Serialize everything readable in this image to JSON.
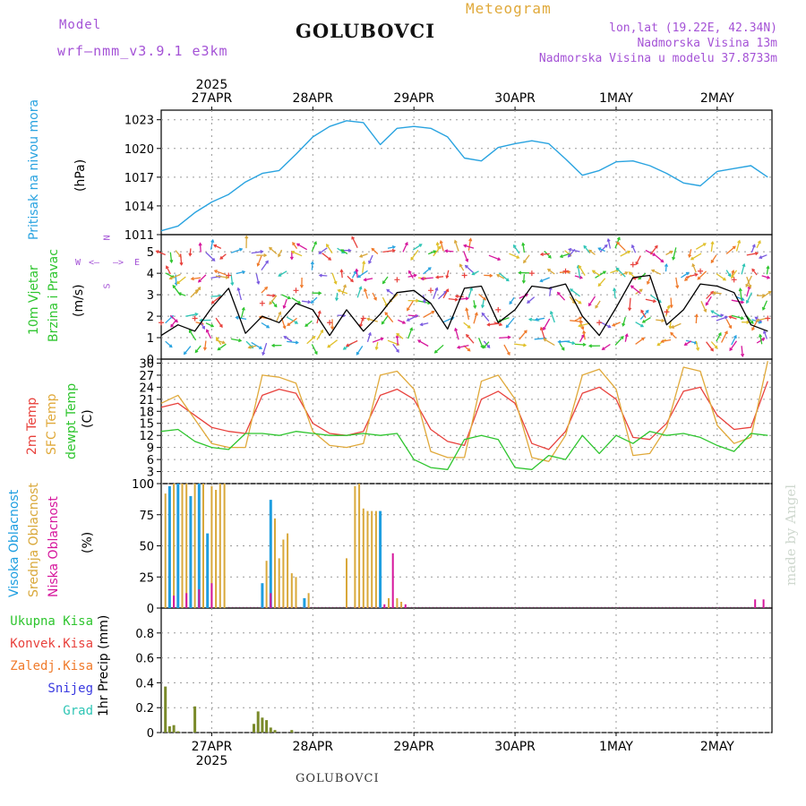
{
  "header": {
    "model_label": "Model",
    "model_name": "wrf–nmm_v3.9.1  e3km",
    "station": "GOLUBOVCI",
    "meteogram": "Meteogram",
    "lonlat": "lon,lat (19.22E, 42.34N)",
    "elevation": "Nadmorska Visina 13m",
    "model_elevation": "Nadmorska Visina u modelu 37.8733m",
    "footer_station": "GOLUBOVCI",
    "watermark": "made by Angel"
  },
  "colors": {
    "pressure": "#29a3e0",
    "wind_mean": "#000000",
    "temp": "#e8413c",
    "sfc_temp": "#e0a93a",
    "dewpoint": "#2ec52e",
    "high_cloud": "#1e9ee0",
    "mid_cloud": "#d9a83a",
    "low_cloud": "#d6169c",
    "total_precip": "#7a8a2a",
    "legend_conv": "#e8413c",
    "legend_frozen": "#f07a2a",
    "legend_snow": "#3a3ae0",
    "legend_hail": "#2ec5b5",
    "purple": "#a452d6",
    "grid": "#9a9a9a"
  },
  "chart_data": [
    {
      "type": "line",
      "panel": "pressure",
      "title": "Pritisak na nivou mora",
      "ylabel": "(hPa)",
      "ylim": [
        1011,
        1024
      ],
      "yticks": [
        1011,
        1014,
        1017,
        1020,
        1023
      ],
      "x_hours": [
        0,
        4,
        8,
        12,
        16,
        20,
        24,
        28,
        32,
        36,
        40,
        44,
        48,
        52,
        56,
        60,
        64,
        68,
        72,
        76,
        80,
        84,
        88,
        92,
        96,
        100,
        104,
        108,
        112,
        116,
        120,
        124,
        128,
        132,
        136,
        140,
        144
      ],
      "values": [
        1011.4,
        1011.9,
        1013.3,
        1014.4,
        1015.2,
        1016.5,
        1017.4,
        1017.7,
        1019.4,
        1021.2,
        1022.3,
        1022.9,
        1022.7,
        1020.4,
        1022.1,
        1022.3,
        1022.1,
        1021.2,
        1019.0,
        1018.7,
        1020.1,
        1020.5,
        1020.8,
        1020.5,
        1018.9,
        1017.2,
        1017.7,
        1018.6,
        1018.7,
        1018.2,
        1017.4,
        1016.4,
        1016.1,
        1017.6,
        1017.9,
        1018.2,
        1017.0
      ]
    },
    {
      "type": "line",
      "panel": "wind",
      "title": "10m Vjetar",
      "title2": "Brzina i Pravac",
      "ylabel": "(m/s)",
      "ylim": [
        0,
        5.8
      ],
      "yticks": [
        0,
        1,
        2,
        3,
        4,
        5
      ],
      "compass": {
        "north": "N",
        "south": "S",
        "west": "W",
        "east": "E",
        "arrow_left": "<–",
        "arrow_right": "–>"
      },
      "x_hours": [
        0,
        4,
        8,
        12,
        16,
        20,
        24,
        28,
        32,
        36,
        40,
        44,
        48,
        52,
        56,
        60,
        64,
        68,
        72,
        76,
        80,
        84,
        88,
        92,
        96,
        100,
        104,
        108,
        112,
        116,
        120,
        124,
        128,
        132,
        136,
        140,
        144
      ],
      "values": [
        1.1,
        1.6,
        1.3,
        2.4,
        3.3,
        1.2,
        2.0,
        1.7,
        2.6,
        2.3,
        1.1,
        2.3,
        1.3,
        2.1,
        3.1,
        3.2,
        2.6,
        1.4,
        3.3,
        3.4,
        1.7,
        2.3,
        3.4,
        3.3,
        3.5,
        2.0,
        1.1,
        2.4,
        3.8,
        3.9,
        1.6,
        2.3,
        3.5,
        3.4,
        3.1,
        1.6,
        1.3
      ]
    },
    {
      "type": "line",
      "panel": "temperature",
      "title": "2m Temp",
      "title2": "SFC Temp",
      "title3": "dewpt Temp",
      "ylabel": "(C)",
      "ylim": [
        0,
        31
      ],
      "yticks": [
        0,
        3,
        6,
        9,
        12,
        15,
        18,
        21,
        24,
        27,
        30
      ],
      "x_hours": [
        0,
        4,
        8,
        12,
        16,
        20,
        24,
        28,
        32,
        36,
        40,
        44,
        48,
        52,
        56,
        60,
        64,
        68,
        72,
        76,
        80,
        84,
        88,
        92,
        96,
        100,
        104,
        108,
        112,
        116,
        120,
        124,
        128,
        132,
        136,
        140,
        144
      ],
      "series": [
        {
          "name": "2m Temp",
          "values": [
            19.0,
            20.0,
            17.0,
            14.0,
            13.0,
            12.5,
            22.0,
            23.5,
            22.5,
            15.0,
            12.5,
            12.0,
            13.0,
            22.0,
            23.5,
            21.0,
            13.5,
            10.5,
            9.5,
            21.0,
            23.0,
            20.0,
            10.0,
            8.5,
            13.0,
            22.5,
            24.0,
            21.0,
            11.5,
            11.0,
            15.0,
            23.0,
            24.0,
            17.0,
            13.5,
            14.0,
            25.5
          ]
        },
        {
          "name": "SFC Temp",
          "values": [
            20.0,
            22.0,
            16.0,
            10.0,
            9.0,
            9.0,
            27.0,
            26.5,
            25.0,
            13.0,
            9.5,
            9.0,
            10.0,
            27.0,
            28.0,
            23.5,
            8.0,
            6.5,
            6.5,
            25.5,
            27.0,
            21.0,
            6.5,
            5.5,
            12.0,
            27.0,
            28.5,
            23.5,
            7.0,
            7.5,
            14.0,
            29.0,
            28.0,
            14.5,
            10.0,
            11.5,
            30.5
          ]
        },
        {
          "name": "dewpt Temp",
          "values": [
            13.0,
            13.5,
            10.5,
            9.0,
            8.5,
            12.5,
            12.5,
            12.0,
            13.0,
            12.5,
            12.0,
            12.0,
            12.5,
            12.0,
            12.5,
            6.0,
            4.0,
            3.5,
            11.0,
            12.0,
            11.0,
            4.0,
            3.5,
            7.0,
            6.0,
            12.0,
            7.5,
            12.0,
            10.0,
            13.0,
            12.0,
            12.5,
            11.5,
            9.5,
            8.0,
            12.5,
            12.0
          ]
        }
      ]
    },
    {
      "type": "bar",
      "panel": "cloud",
      "title": "Visoka Oblacnost",
      "title2": "Srednja Oblacnost",
      "title3": "Niska Oblacnost",
      "ylabel": "(%)",
      "ylim": [
        0,
        100
      ],
      "yticks": [
        0,
        25,
        50,
        75,
        100
      ],
      "series": [
        {
          "name": "Visoka Oblacnost",
          "x_hours": [
            2,
            4,
            7,
            9,
            11,
            24,
            26,
            34,
            52
          ],
          "values": [
            98,
            100,
            90,
            100,
            60,
            20,
            87,
            8,
            78
          ]
        },
        {
          "name": "Srednja Oblacnost",
          "x_hours": [
            1,
            3,
            5,
            6,
            8,
            10,
            12,
            13,
            14,
            15,
            25,
            27,
            28,
            29,
            30,
            31,
            32,
            35,
            44,
            46,
            47,
            48,
            49,
            50,
            51,
            54,
            56,
            57
          ],
          "values": [
            92,
            100,
            100,
            100,
            100,
            100,
            98,
            95,
            100,
            100,
            38,
            72,
            40,
            55,
            60,
            28,
            25,
            12,
            40,
            98,
            100,
            80,
            78,
            78,
            78,
            8,
            8,
            5
          ]
        },
        {
          "name": "Niska Oblacnost",
          "x_hours": [
            3,
            6,
            9,
            12,
            26,
            53,
            55,
            58,
            141,
            143
          ],
          "values": [
            10,
            12,
            15,
            20,
            12,
            3,
            44,
            3,
            7,
            7
          ]
        }
      ]
    },
    {
      "type": "bar",
      "panel": "precip",
      "title": "1hr Precip (mm)",
      "ylabel": "1hr Precip (mm)",
      "ylim": [
        0,
        1.0
      ],
      "yticks": [
        0,
        0.2,
        0.4,
        0.6,
        0.8
      ],
      "legend": [
        "Ukupna Kisa",
        "Konvek.Kisa",
        "Zaledj.Kisa",
        "Snijeg",
        "Grad"
      ],
      "series": [
        {
          "name": "Ukupna Kisa",
          "x_hours": [
            1,
            2,
            3,
            4,
            8,
            22,
            23,
            24,
            25,
            26,
            27,
            31
          ],
          "values": [
            0.37,
            0.05,
            0.06,
            0.01,
            0.21,
            0.07,
            0.17,
            0.12,
            0.1,
            0.04,
            0.02,
            0.02
          ]
        }
      ]
    },
    {
      "type": "axis",
      "panel": "time",
      "x_range_hours": [
        0,
        145
      ],
      "top_year": "2025",
      "bottom_year": "2025",
      "x_tick_hours": [
        12,
        36,
        60,
        84,
        108,
        132
      ],
      "x_tick_labels": [
        "27APR",
        "28APR",
        "29APR",
        "30APR",
        "1MAY",
        "2MAY"
      ]
    }
  ]
}
